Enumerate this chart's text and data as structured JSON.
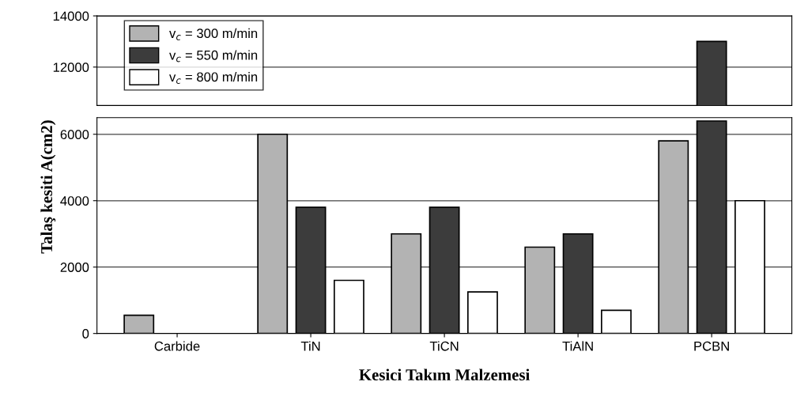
{
  "chart_data": [
    {
      "type": "bar",
      "categories": [
        null,
        null,
        null,
        null,
        null
      ],
      "series": [
        {
          "name": "v$_{c}$ = 300 m/min",
          "color": "#b3b3b3",
          "values": [
            null,
            null,
            null,
            null,
            null
          ]
        },
        {
          "name": "v$_{c}$ = 550 m/min",
          "color": "#3c3c3c",
          "values": [
            null,
            null,
            null,
            null,
            13000
          ]
        },
        {
          "name": "v$_{c}$ = 800 m/min",
          "color": "#ffffff",
          "values": [
            null,
            null,
            null,
            null,
            null
          ]
        }
      ],
      "ylim": [
        10500,
        14000
      ],
      "yticks": [
        12000,
        14000
      ],
      "grid": "y",
      "legend": "top left",
      "tick_labels": "y"
    },
    {
      "type": "bar",
      "categories": [
        "Carbide",
        "TiN",
        "TiCN",
        "TiAlN",
        "PCBN"
      ],
      "xlabel": "Kesici Takım Malzemesi",
      "ylabel": "Talaş kesiti A(cm2)",
      "series": [
        {
          "color": "#b3b3b3",
          "values": [
            550,
            6000,
            3000,
            2600,
            5800
          ]
        },
        {
          "color": "#3c3c3c",
          "values": [
            null,
            3800,
            3800,
            3000,
            6400
          ]
        },
        {
          "color": "#ffffff",
          "values": [
            null,
            1600,
            1250,
            700,
            4000
          ]
        }
      ],
      "ylim": [
        0,
        6500
      ],
      "yticks": [
        0,
        2000,
        4000,
        6000
      ],
      "grid": "y"
    }
  ]
}
